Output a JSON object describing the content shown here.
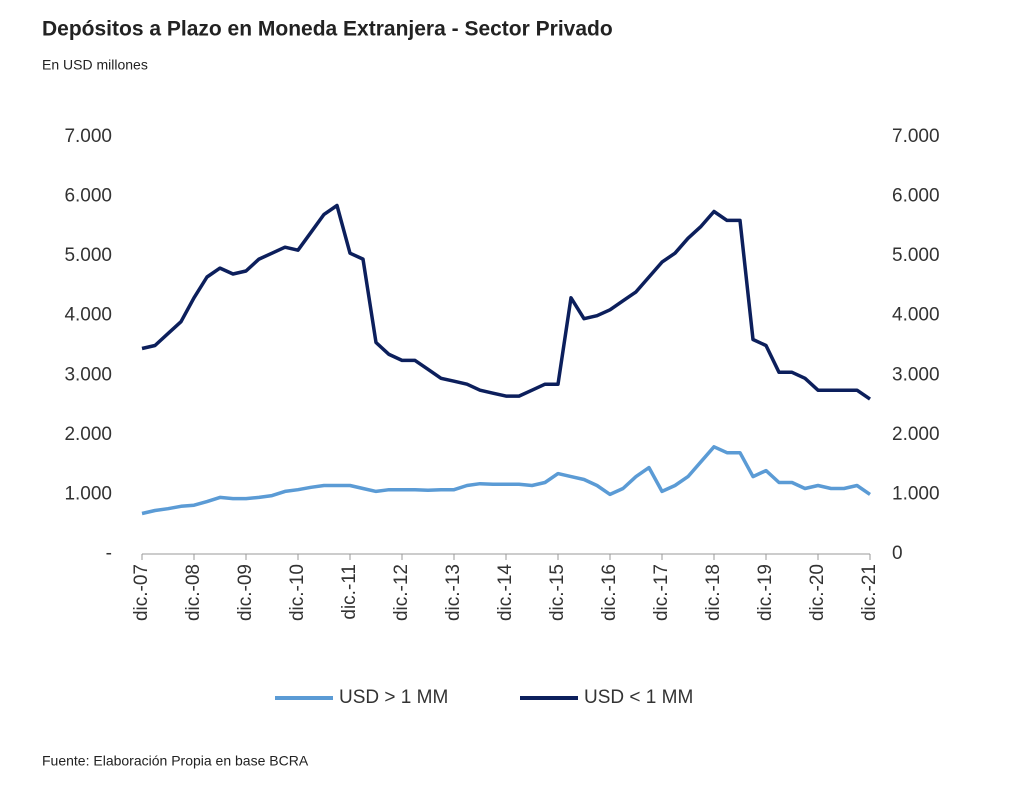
{
  "chart_data": {
    "type": "line",
    "title": "Depósitos a Plazo en Moneda Extranjera - Sector Privado",
    "subtitle": "En USD millones",
    "source": "Fuente: Elaboración Propia en base BCRA",
    "categories": [
      "dic.-07",
      null,
      null,
      null,
      "dic.-08",
      null,
      null,
      null,
      "dic.-09",
      null,
      null,
      null,
      "dic.-10",
      null,
      null,
      null,
      "dic.-11",
      null,
      null,
      null,
      "dic.-12",
      null,
      null,
      null,
      "dic.-13",
      null,
      null,
      null,
      "dic.-14",
      null,
      null,
      null,
      "dic.-15",
      null,
      null,
      null,
      "dic.-16",
      null,
      null,
      null,
      "dic.-17",
      null,
      null,
      null,
      "dic.-18",
      null,
      null,
      null,
      "dic.-19",
      null,
      null,
      null,
      "dic.-20",
      null,
      null,
      null,
      "dic.-21"
    ],
    "series": [
      {
        "name": "USD > 1 MM",
        "color": "#5b9bd5",
        "values": [
          680,
          730,
          760,
          800,
          820,
          880,
          950,
          930,
          930,
          950,
          980,
          1050,
          1080,
          1120,
          1150,
          1150,
          1150,
          1100,
          1050,
          1080,
          1080,
          1080,
          1070,
          1080,
          1080,
          1150,
          1180,
          1170,
          1170,
          1170,
          1150,
          1200,
          1350,
          1300,
          1250,
          1150,
          1000,
          1100,
          1300,
          1450,
          1050,
          1150,
          1300,
          1550,
          1800,
          1700,
          1700,
          1300,
          1400,
          1200,
          1200,
          1100,
          1150,
          1100,
          1100,
          1150,
          1000
        ]
      },
      {
        "name": "USD < 1 MM",
        "color": "#0c1f5c",
        "values": [
          3450,
          3500,
          3700,
          3900,
          4300,
          4650,
          4800,
          4700,
          4750,
          4950,
          5050,
          5150,
          5100,
          5400,
          5700,
          5850,
          5050,
          4950,
          3550,
          3350,
          3250,
          3250,
          3100,
          2950,
          2900,
          2850,
          2750,
          2700,
          2650,
          2650,
          2750,
          2850,
          2850,
          4300,
          3950,
          4000,
          4100,
          4250,
          4400,
          4650,
          4900,
          5050,
          5300,
          5500,
          5750,
          5600,
          5600,
          3600,
          3500,
          3050,
          3050,
          2950,
          2750,
          2750,
          2750,
          2750,
          2600
        ]
      }
    ],
    "ylim": [
      0,
      7000
    ],
    "yticks": [
      {
        "value": 0,
        "label": "-"
      },
      {
        "value": 1000,
        "label": "1.000"
      },
      {
        "value": 2000,
        "label": "2.000"
      },
      {
        "value": 3000,
        "label": "3.000"
      },
      {
        "value": 4000,
        "label": "4.000"
      },
      {
        "value": 5000,
        "label": "5.000"
      },
      {
        "value": 6000,
        "label": "6.000"
      },
      {
        "value": 7000,
        "label": "7.000"
      }
    ],
    "y2lim": [
      0,
      7000
    ],
    "y2ticks": [
      0,
      {
        "value": 1000,
        "label": "1.000"
      },
      {
        "value": 2000,
        "label": "2.000"
      },
      {
        "value": 3000,
        "label": "3.000"
      },
      {
        "value": 4000,
        "label": "4.000"
      },
      {
        "value": 5000,
        "label": "5.000"
      },
      {
        "value": 6000,
        "label": "6.000"
      },
      {
        "value": 7000,
        "label": "7.000"
      }
    ],
    "grid": false,
    "legend": "bottom"
  }
}
